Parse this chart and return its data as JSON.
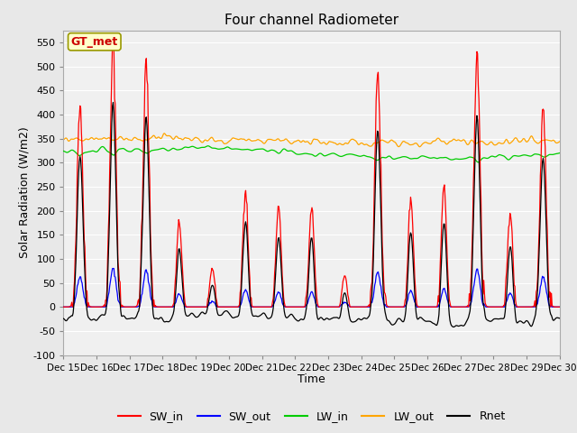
{
  "title": "Four channel Radiometer",
  "xlabel": "Time",
  "ylabel": "Solar Radiation (W/m2)",
  "ylim": [
    -100,
    575
  ],
  "yticks": [
    -100,
    -50,
    0,
    50,
    100,
    150,
    200,
    250,
    300,
    350,
    400,
    450,
    500,
    550
  ],
  "annotation_text": "GT_met",
  "annotation_color": "#CC0000",
  "annotation_bg": "#FFFFCC",
  "annotation_border": "#999900",
  "colors": {
    "SW_in": "#FF0000",
    "SW_out": "#0000FF",
    "LW_in": "#00CC00",
    "LW_out": "#FFA500",
    "Rnet": "#000000"
  },
  "legend_labels": [
    "SW_in",
    "SW_out",
    "LW_in",
    "LW_out",
    "Rnet"
  ],
  "bg_color": "#E8E8E8",
  "plot_bg": "#F0F0F0",
  "n_days": 15,
  "start_day": 15,
  "SW_in_peaks": [
    425,
    540,
    505,
    175,
    80,
    245,
    205,
    205,
    65,
    495,
    225,
    250,
    525,
    195,
    415
  ]
}
